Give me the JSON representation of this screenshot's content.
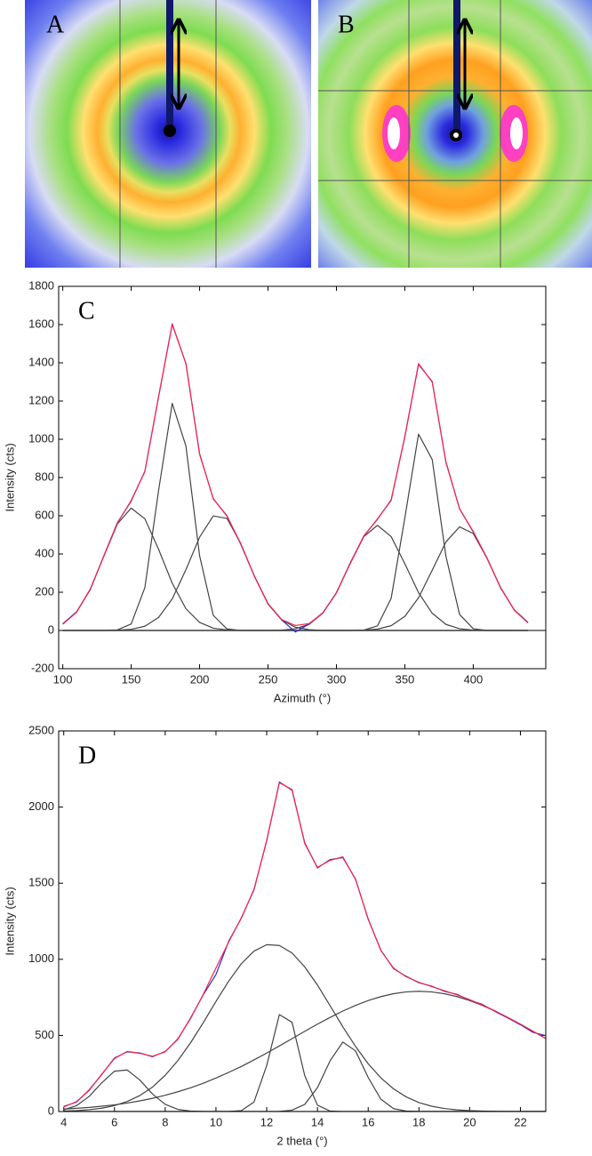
{
  "panels": [
    {
      "label": "A"
    },
    {
      "label": "B"
    }
  ],
  "chart_data": [
    {
      "type": "line",
      "label": "C",
      "x_label": "Azimuth (°)",
      "y_label": "Intensity (cts)",
      "xlim": [
        97,
        453
      ],
      "xticks": [
        100,
        150,
        200,
        250,
        300,
        350,
        400
      ],
      "ylim": [
        -200,
        1800
      ],
      "yticks": [
        -200,
        0,
        200,
        400,
        600,
        800,
        1000,
        1200,
        1400,
        1600,
        1800
      ],
      "x": [
        100,
        110,
        120,
        130,
        140,
        150,
        160,
        170,
        180,
        190,
        200,
        210,
        220,
        230,
        240,
        250,
        260,
        270,
        280,
        290,
        300,
        310,
        320,
        330,
        340,
        350,
        360,
        370,
        380,
        390,
        400,
        410,
        420,
        430,
        440
      ],
      "series": [
        {
          "color": "#444444",
          "values": [
            33,
            95,
            215,
            388,
            558,
            640,
            584,
            425,
            247,
            114,
            42,
            12,
            3,
            0,
            0,
            0,
            0,
            0,
            0,
            0,
            0,
            0,
            0,
            0,
            0,
            0,
            0,
            0,
            0,
            0,
            0,
            0,
            0,
            0,
            0
          ]
        },
        {
          "color": "#444444",
          "values": [
            0,
            0,
            0,
            0,
            3,
            34,
            224,
            731,
            1188,
            965,
            391,
            79,
            8,
            0,
            0,
            0,
            0,
            0,
            0,
            0,
            0,
            0,
            0,
            0,
            0,
            0,
            0,
            0,
            0,
            0,
            0,
            0,
            0,
            0,
            0
          ]
        },
        {
          "color": "#444444",
          "values": [
            0,
            0,
            0,
            0,
            1,
            6,
            22,
            68,
            165,
            318,
            488,
            599,
            586,
            456,
            284,
            140,
            55,
            17,
            4,
            0,
            0,
            0,
            0,
            0,
            0,
            0,
            0,
            0,
            0,
            0,
            0,
            0,
            0,
            0,
            0
          ]
        },
        {
          "color": "#444444",
          "values": [
            0,
            0,
            0,
            0,
            0,
            0,
            0,
            0,
            0,
            0,
            0,
            0,
            0,
            0,
            0,
            0,
            2,
            9,
            32,
            90,
            198,
            349,
            491,
            550,
            491,
            349,
            198,
            90,
            32,
            9,
            2,
            0,
            0,
            0,
            0
          ]
        },
        {
          "color": "#444444",
          "values": [
            0,
            0,
            0,
            0,
            0,
            0,
            0,
            0,
            0,
            0,
            0,
            0,
            0,
            0,
            0,
            0,
            0,
            0,
            0,
            0,
            0,
            0,
            2,
            24,
            168,
            589,
            1027,
            894,
            389,
            84,
            9,
            0,
            0,
            0,
            0
          ]
        },
        {
          "color": "#444444",
          "values": [
            0,
            0,
            0,
            0,
            0,
            0,
            0,
            0,
            0,
            0,
            0,
            0,
            0,
            0,
            0,
            0,
            0,
            0,
            0,
            0,
            0,
            0,
            2,
            7,
            25,
            74,
            171,
            315,
            463,
            542,
            507,
            378,
            224,
            106,
            40
          ]
        },
        {
          "color": "#2a2ad0",
          "values": [
            35,
            97,
            212,
            390,
            565,
            676,
            833,
            1220,
            1604,
            1395,
            925,
            688,
            600,
            452,
            286,
            138,
            55,
            -8,
            34,
            92,
            196,
            352,
            493,
            583,
            681,
            1015,
            1392,
            1302,
            880,
            637,
            515,
            380,
            222,
            108,
            42
          ]
        },
        {
          "color": "#ff2448",
          "values": [
            33,
            95,
            215,
            388,
            562,
            680,
            830,
            1224,
            1600,
            1397,
            921,
            690,
            597,
            456,
            284,
            140,
            57,
            26,
            36,
            90,
            198,
            349,
            495,
            581,
            684,
            1012,
            1396,
            1299,
            884,
            635,
            518,
            378,
            224,
            106,
            40
          ]
        }
      ]
    },
    {
      "type": "line",
      "label": "D",
      "x_label": "2 theta (°)",
      "y_label": "Intensity (cts)",
      "xlim": [
        3.8,
        23
      ],
      "xticks": [
        4,
        6,
        8,
        10,
        12,
        14,
        16,
        18,
        20,
        22
      ],
      "ylim": [
        0,
        2500
      ],
      "yticks": [
        0,
        500,
        1000,
        1500,
        2000,
        2500
      ],
      "x": [
        4,
        4.5,
        5,
        5.5,
        6,
        6.5,
        7,
        7.5,
        8,
        8.5,
        9,
        9.5,
        10,
        10.5,
        11,
        11.5,
        12,
        12.5,
        13,
        13.5,
        14,
        14.5,
        15,
        15.5,
        16,
        16.5,
        17,
        17.5,
        18,
        18.5,
        19,
        19.5,
        20,
        20.5,
        21,
        21.5,
        22,
        22.5,
        23
      ],
      "series": [
        {
          "color": "#444444",
          "values": [
            11,
            38,
            99,
            189,
            265,
            273,
            207,
            115,
            47,
            14,
            3,
            0,
            0,
            0,
            0,
            0,
            0,
            0,
            0,
            0,
            0,
            0,
            0,
            0,
            0,
            0,
            0,
            0,
            0,
            0,
            0,
            0,
            0,
            0,
            0,
            0,
            0,
            0,
            0
          ]
        },
        {
          "color": "#444444",
          "values": [
            3,
            6,
            12,
            22,
            39,
            66,
            105,
            161,
            238,
            335,
            452,
            584,
            723,
            856,
            971,
            1054,
            1096,
            1091,
            1041,
            950,
            831,
            695,
            557,
            428,
            314,
            221,
            149,
            96,
            59,
            35,
            20,
            11,
            6,
            3,
            1,
            0,
            0,
            0,
            0
          ]
        },
        {
          "color": "#444444",
          "values": [
            0,
            0,
            0,
            0,
            0,
            0,
            0,
            0,
            0,
            0,
            0,
            0,
            0,
            0,
            6,
            63,
            302,
            637,
            586,
            236,
            42,
            3,
            0,
            0,
            0,
            0,
            0,
            0,
            0,
            0,
            0,
            0,
            0,
            0,
            0,
            0,
            0,
            0,
            0
          ]
        },
        {
          "color": "#444444",
          "values": [
            0,
            0,
            0,
            0,
            0,
            0,
            0,
            0,
            0,
            0,
            0,
            0,
            0,
            0,
            0,
            0,
            0,
            1,
            9,
            47,
            157,
            334,
            456,
            399,
            224,
            81,
            19,
            3,
            0,
            0,
            0,
            0,
            0,
            0,
            0,
            0,
            0,
            0,
            0
          ]
        },
        {
          "color": "#444444",
          "values": [
            16,
            21,
            27,
            35,
            44,
            56,
            70,
            87,
            107,
            130,
            156,
            186,
            220,
            257,
            296,
            339,
            384,
            431,
            479,
            527,
            574,
            618,
            660,
            697,
            729,
            755,
            774,
            786,
            790,
            786,
            774,
            755,
            729,
            697,
            660,
            618,
            574,
            527,
            479
          ]
        },
        {
          "color": "#2a2ad0",
          "values": [
            34,
            62,
            142,
            243,
            352,
            392,
            385,
            360,
            395,
            475,
            615,
            767,
            900,
            1118,
            1270,
            1460,
            1778,
            2165,
            2110,
            1765,
            1600,
            1655,
            1668,
            1528,
            1263,
            1060,
            938,
            888,
            846,
            824,
            790,
            770,
            731,
            704,
            657,
            615,
            570,
            520,
            498
          ]
        },
        {
          "color": "#ff2448",
          "values": [
            30,
            65,
            138,
            246,
            348,
            395,
            382,
            363,
            392,
            479,
            611,
            770,
            943,
            1113,
            1273,
            1456,
            1782,
            2160,
            2115,
            1760,
            1604,
            1650,
            1673,
            1524,
            1267,
            1057,
            942,
            885,
            849,
            821,
            794,
            766,
            735,
            700,
            661,
            618,
            574,
            527,
            479
          ]
        }
      ]
    }
  ]
}
